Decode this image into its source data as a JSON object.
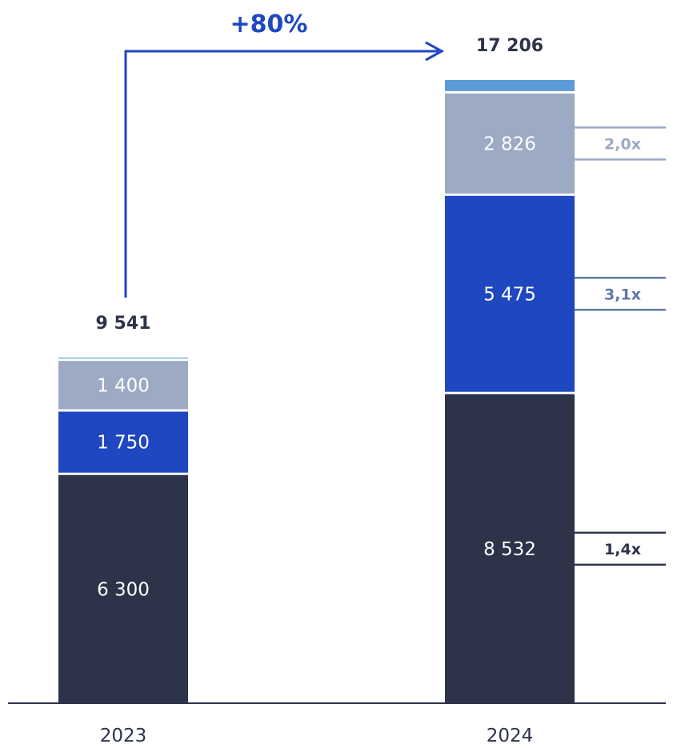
{
  "chart_data": {
    "type": "bar",
    "stacked": true,
    "categories": [
      "2023",
      "2024"
    ],
    "series": [
      {
        "values": [
          6300,
          8532
        ],
        "labels": [
          "6 300",
          "8 532"
        ],
        "color": "#2d3349",
        "multiplier": "1,4x",
        "multiplier_color": "#2d3349"
      },
      {
        "values": [
          1750,
          5475
        ],
        "labels": [
          "1 750",
          "5 475"
        ],
        "color": "#1f47c0",
        "multiplier": "3,1x",
        "multiplier_color": "#5b79a8"
      },
      {
        "values": [
          1400,
          2826
        ],
        "labels": [
          "1 400",
          "2 826"
        ],
        "color": "#9caac4",
        "multiplier": "2,0x",
        "multiplier_color": "#9caac4"
      },
      {
        "values": [
          91,
          373
        ],
        "labels": [
          "",
          ""
        ],
        "color": "#5b9bd8"
      }
    ],
    "totals": [
      9541,
      17206
    ],
    "total_labels": [
      "9 541",
      "17 206"
    ],
    "growth": {
      "label": "+80%",
      "color": "#1f47c0"
    },
    "title": "",
    "xlabel": "",
    "ylabel": "",
    "ylim": [
      0,
      17206
    ],
    "grid": false,
    "legend": "none"
  }
}
